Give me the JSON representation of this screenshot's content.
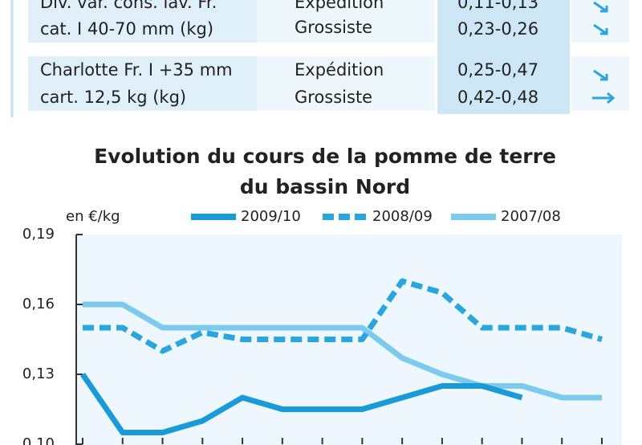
{
  "table": {
    "rows": [
      {
        "product": [
          "Div. var. cons. lav. Fr.",
          "cat. I 40-70 mm (kg)"
        ],
        "stage": [
          "Expédition",
          "Grossiste"
        ],
        "price": [
          "0,11-0,13",
          "0,23-0,26"
        ]
      },
      {
        "product": [
          "Charlotte Fr. I +35 mm",
          "cart. 12,5 kg (kg)"
        ],
        "stage": [
          "Expédition",
          "Grossiste"
        ],
        "price": [
          "0,25-0,47",
          "0,42-0,48"
        ]
      }
    ]
  },
  "chart_data": {
    "type": "line",
    "title": [
      "Evolution du cours de la pomme de terre",
      "du bassin Nord"
    ],
    "y_label": "en €/kg",
    "categories": [
      null,
      null,
      null,
      null,
      null,
      null,
      null,
      null,
      null,
      null,
      null,
      null,
      null,
      null
    ],
    "series": [
      {
        "name": "2009/10",
        "color": "#1a9ad6",
        "dash": false,
        "values": [
          0.13,
          0.105,
          0.105,
          0.11,
          0.12,
          0.115,
          0.115,
          0.115,
          0.12,
          0.125,
          0.125,
          0.12,
          null,
          null
        ]
      },
      {
        "name": "2008/09",
        "color": "#2aa6dc",
        "dash": true,
        "values": [
          0.15,
          0.15,
          0.14,
          0.148,
          0.145,
          0.145,
          0.145,
          0.145,
          0.17,
          0.165,
          0.15,
          0.15,
          0.15,
          0.145
        ]
      },
      {
        "name": "2007/08",
        "color": "#7ccbef",
        "dash": false,
        "values": [
          0.16,
          0.16,
          0.15,
          0.15,
          0.15,
          0.15,
          0.15,
          0.15,
          0.137,
          0.13,
          0.125,
          0.125,
          0.12,
          0.12
        ]
      }
    ],
    "ylim": [
      0.1,
      0.19
    ],
    "yticks": [
      {
        "value": 0.1,
        "label": "0,10"
      },
      {
        "value": 0.13,
        "label": "0,13"
      },
      {
        "value": 0.16,
        "label": "0,16"
      },
      {
        "value": 0.19,
        "label": "0,19"
      }
    ]
  }
}
